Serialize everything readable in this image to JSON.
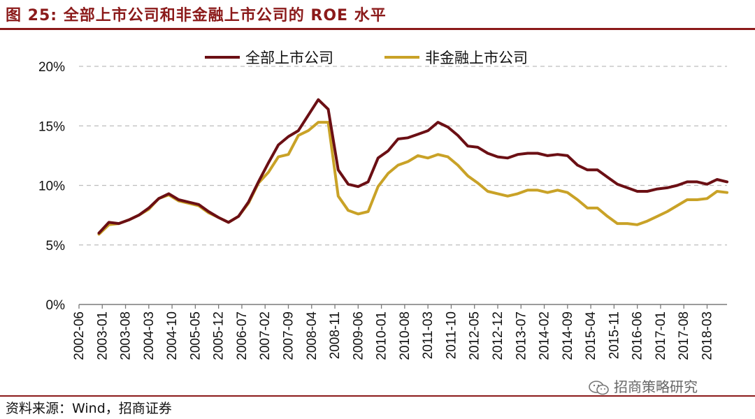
{
  "header": {
    "title": "图 25:  全部上市公司和非金融上市公司的 ROE 水平"
  },
  "footer": {
    "source": "资料来源：Wind，招商证券",
    "watermark": "招商策略研究"
  },
  "colors": {
    "accent": "#8b1a1a",
    "all_series": "#6b0f14",
    "nonfin_series": "#c9a227",
    "grid": "#bdbdbd"
  },
  "icons": {
    "watermark_icon": "wechat-icon"
  },
  "chart_data": {
    "type": "line",
    "title": "",
    "xlabel": "",
    "ylabel": "",
    "ylim": [
      0,
      20
    ],
    "yticks": [
      "0%",
      "5%",
      "10%",
      "15%",
      "20%"
    ],
    "grid": "horizontal dashed",
    "legend_position": "top-center",
    "x": [
      "2002-06",
      "2002-09",
      "2002-12",
      "2003-03",
      "2003-06",
      "2003-09",
      "2003-12",
      "2004-03",
      "2004-06",
      "2004-09",
      "2004-12",
      "2005-03",
      "2005-06",
      "2005-09",
      "2005-12",
      "2006-03",
      "2006-06",
      "2006-09",
      "2006-12",
      "2007-03",
      "2007-06",
      "2007-09",
      "2007-12",
      "2008-03",
      "2008-06",
      "2008-09",
      "2008-12",
      "2009-03",
      "2009-06",
      "2009-09",
      "2009-12",
      "2010-03",
      "2010-06",
      "2010-09",
      "2010-12",
      "2011-03",
      "2011-06",
      "2011-09",
      "2011-12",
      "2012-03",
      "2012-06",
      "2012-09",
      "2012-12",
      "2013-03",
      "2013-06",
      "2013-09",
      "2013-12",
      "2014-03",
      "2014-06",
      "2014-09",
      "2014-12",
      "2015-03",
      "2015-06",
      "2015-09",
      "2015-12",
      "2016-03",
      "2016-06",
      "2016-09",
      "2016-12",
      "2017-03",
      "2017-06",
      "2017-09",
      "2017-12",
      "2018-03",
      "2018-06",
      "2018-09"
    ],
    "x_tick_labels": [
      "2002-06",
      "2003-01",
      "2003-08",
      "2004-03",
      "2004-10",
      "2005-05",
      "2005-12",
      "2006-07",
      "2007-02",
      "2007-09",
      "2008-04",
      "2008-11",
      "2009-06",
      "2010-01",
      "2010-08",
      "2011-03",
      "2011-10",
      "2012-05",
      "2012-12",
      "2013-07",
      "2014-02",
      "2014-09",
      "2015-04",
      "2015-11",
      "2016-06",
      "2017-01",
      "2017-08",
      "2018-03"
    ],
    "series": [
      {
        "name": "全部上市公司",
        "color": "#6b0f14",
        "values": [
          null,
          null,
          6.0,
          6.9,
          6.8,
          7.1,
          7.5,
          8.1,
          8.9,
          9.3,
          8.8,
          8.6,
          8.4,
          7.8,
          7.3,
          6.9,
          7.4,
          8.6,
          10.3,
          11.9,
          13.4,
          14.1,
          14.6,
          15.9,
          17.2,
          16.4,
          11.3,
          10.1,
          9.9,
          10.3,
          12.3,
          12.9,
          13.9,
          14.0,
          14.3,
          14.6,
          15.3,
          14.9,
          14.2,
          13.3,
          13.2,
          12.7,
          12.4,
          12.3,
          12.6,
          12.7,
          12.7,
          12.5,
          12.6,
          12.5,
          11.7,
          11.3,
          11.3,
          10.7,
          10.1,
          9.8,
          9.5,
          9.5,
          9.7,
          9.8,
          10.0,
          10.3,
          10.3,
          10.1,
          10.5,
          10.3
        ]
      },
      {
        "name": "非金融上市公司",
        "color": "#c9a227",
        "values": [
          null,
          null,
          5.9,
          6.7,
          6.8,
          7.1,
          7.5,
          8.0,
          8.9,
          9.2,
          8.7,
          8.5,
          8.3,
          7.7,
          7.3,
          6.9,
          7.4,
          8.5,
          10.2,
          11.1,
          12.4,
          12.6,
          14.2,
          14.6,
          15.3,
          15.3,
          9.1,
          7.9,
          7.6,
          7.8,
          9.9,
          11.0,
          11.7,
          12.0,
          12.5,
          12.3,
          12.6,
          12.4,
          11.7,
          10.8,
          10.2,
          9.5,
          9.3,
          9.1,
          9.3,
          9.6,
          9.6,
          9.4,
          9.6,
          9.4,
          8.8,
          8.1,
          8.1,
          7.4,
          6.8,
          6.8,
          6.7,
          7.0,
          7.4,
          7.8,
          8.3,
          8.8,
          8.8,
          8.9,
          9.5,
          9.4
        ]
      }
    ]
  }
}
